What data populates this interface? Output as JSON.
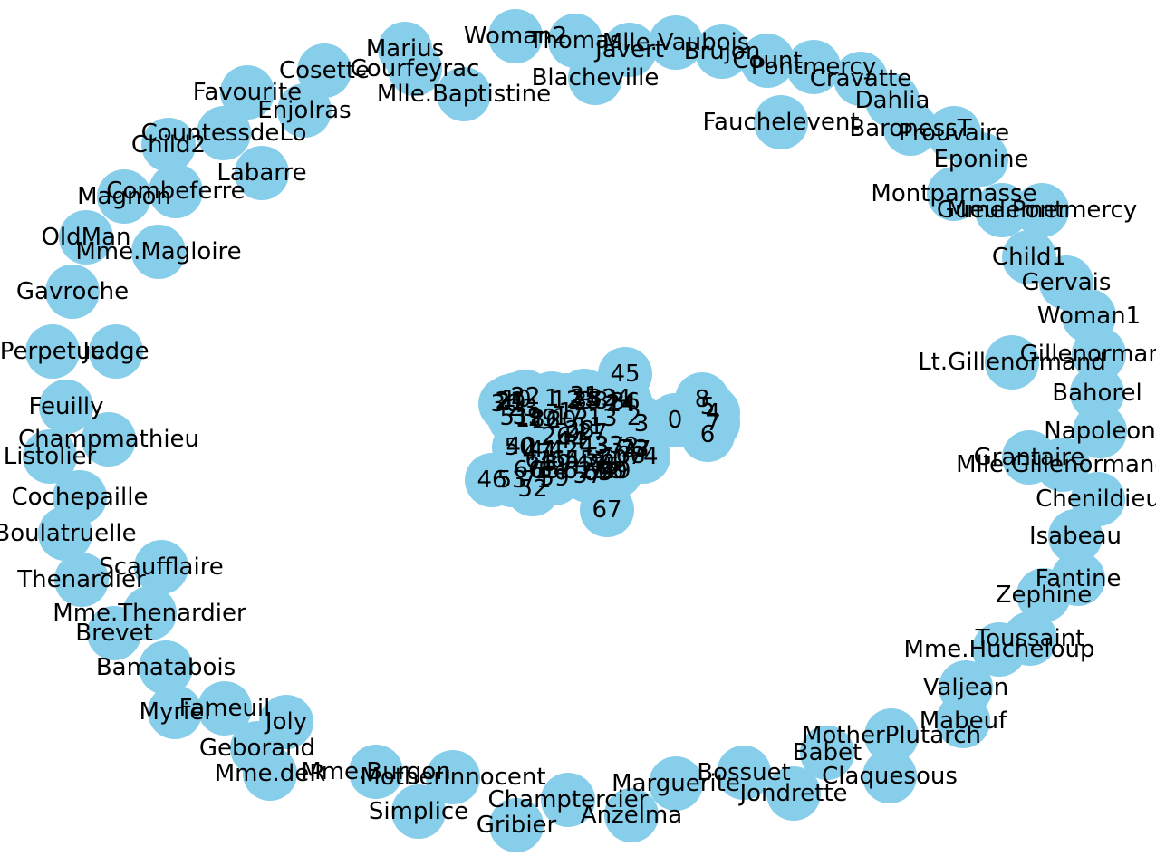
{
  "diagram": {
    "type": "network-graph",
    "node_color": "#87ceeb",
    "label_color": "#000000",
    "edges": [],
    "nodes": [
      "Woman2",
      "Thomas",
      "Mlle.Vaubois",
      "Javert",
      "Brujon",
      "Count",
      "Pontmercy",
      "Cravatte",
      "Marius",
      "Courfeyrac",
      "Mlle.Baptistine",
      "Blacheville",
      "Cosette",
      "Favourite",
      "Enjolras",
      "CountessdeLo",
      "Child2",
      "Labarre",
      "Fauchelevent",
      "Dahlia",
      "BaronessT",
      "Prouvaire",
      "Eponine",
      "Montparnasse",
      "Gueulemer",
      "Mme.Pontmercy",
      "Magnon",
      "Combeferre",
      "OldMan",
      "Mme.Magloire",
      "Gavroche",
      "Perpetue",
      "Judge",
      "Child1",
      "Gervais",
      "Woman1",
      "Gillenormand",
      "Lt.Gillenormand",
      "Bahorel",
      "Feuilly",
      "Champmathieu",
      "Listolier",
      "Cochepaille",
      "Napoleon",
      "Grantaire",
      "Mlle.Gillenormand",
      "Chenildieu",
      "Boulatruelle",
      "Isabeau",
      "Scaufflaire",
      "Thenardier",
      "Mme.Thenardier",
      "Fantine",
      "Zephine",
      "Brevet",
      "Toussaint",
      "Mme.Hucheloup",
      "Bamatabois",
      "Valjean",
      "Mabeuf",
      "Myriel",
      "Fameuil",
      "Joly",
      "MotherPlutarch",
      "Babet",
      "Geborand",
      "Mme.deR",
      "Mme.Burgon",
      "MotherInnocent",
      "Bossuet",
      "Claquesous",
      "Jondrette",
      "Marguerite",
      "Champtercier",
      "Simplice",
      "Gribier",
      "Anzelma",
      "45",
      "31",
      "32",
      "38",
      "24",
      "8",
      "5",
      "4",
      "7",
      "6",
      "0",
      "3",
      "2",
      "13",
      "14",
      "17",
      "25",
      "34",
      "12",
      "1",
      "15",
      "16",
      "10",
      "21",
      "22",
      "23",
      "18",
      "26",
      "28",
      "19",
      "20",
      "9",
      "27",
      "29",
      "30",
      "33",
      "35",
      "36",
      "37",
      "39",
      "40",
      "41",
      "42",
      "43",
      "44",
      "47",
      "48",
      "49",
      "50",
      "51",
      "46",
      "52",
      "53",
      "54",
      "55",
      "56",
      "57",
      "58",
      "59",
      "60",
      "61",
      "62",
      "63",
      "64",
      "65",
      "66",
      "67",
      "68",
      "69",
      "70",
      "71",
      "72",
      "73",
      "74",
      "75",
      "11"
    ]
  }
}
